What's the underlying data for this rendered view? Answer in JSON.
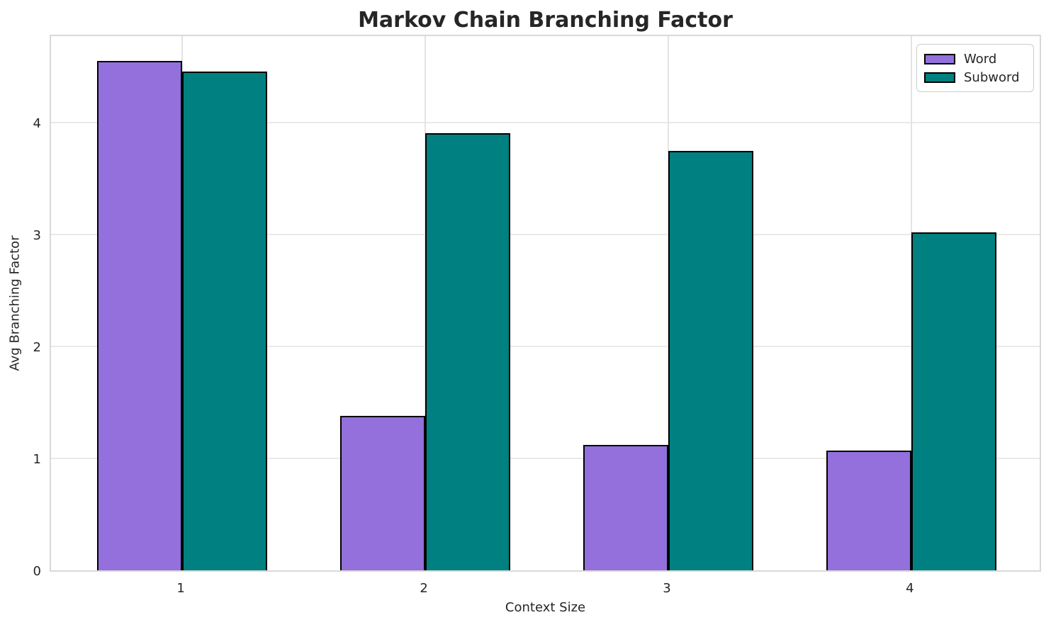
{
  "chart_data": {
    "type": "bar",
    "title": "Markov Chain Branching Factor",
    "xlabel": "Context Size",
    "ylabel": "Avg Branching Factor",
    "categories": [
      "1",
      "2",
      "3",
      "4"
    ],
    "series": [
      {
        "name": "Word",
        "color": "#9370DB",
        "values": [
          4.55,
          1.38,
          1.12,
          1.07
        ]
      },
      {
        "name": "Subword",
        "color": "#008080",
        "values": [
          4.46,
          3.91,
          3.75,
          3.02
        ]
      }
    ],
    "ylim": [
      0,
      4.8
    ],
    "yticks": [
      0,
      1,
      2,
      3,
      4
    ],
    "bar_edge_color": "#000000",
    "bar_width_units": 0.35,
    "grid": true,
    "legend_position": "upper right",
    "colors": {
      "title_text": "#262626",
      "tick_text": "#262626",
      "grid_h": "#e9e9e9",
      "grid_v": "#e3e3e3",
      "spine": "#d9d9d9",
      "background": "#ffffff"
    }
  }
}
